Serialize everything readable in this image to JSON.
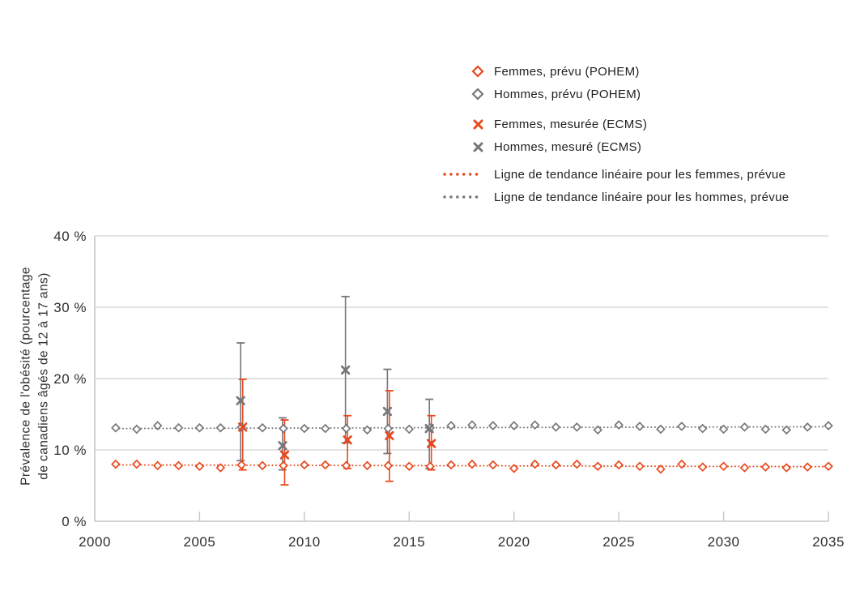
{
  "legend": {
    "items": [
      {
        "label": "Femmes, prévu (POHEM)",
        "marker": "diamond",
        "color_key": "femmes"
      },
      {
        "label": "Hommes, prévu (POHEM)",
        "marker": "diamond",
        "color_key": "hommes"
      },
      {
        "label": "Femmes, mesurée (ECMS)",
        "marker": "x",
        "color_key": "femmes"
      },
      {
        "label": "Hommes, mesuré (ECMS)",
        "marker": "x",
        "color_key": "hommes"
      },
      {
        "label": "Ligne de tendance linéaire pour les femmes, prévue",
        "marker": "dotted-line",
        "color_key": "femmes"
      },
      {
        "label": "Ligne de tendance linéaire pour les hommes, prévue",
        "marker": "dotted-line",
        "color_key": "hommes"
      }
    ]
  },
  "chart_data": {
    "type": "scatter",
    "title": "",
    "xlabel": "",
    "ylabel_line1": "Prévalence de l'obésité (pourcentage",
    "ylabel_line2": "de canadiens âgés de 12 à 17 ans)",
    "xlim": [
      2000,
      2035
    ],
    "ylim": [
      0,
      40
    ],
    "grid": "horizontal",
    "legend_position": "top-right",
    "x_ticks": [
      {
        "value": 2000,
        "label": "2000"
      },
      {
        "value": 2005,
        "label": "2005"
      },
      {
        "value": 2010,
        "label": "2010"
      },
      {
        "value": 2015,
        "label": "2015"
      },
      {
        "value": 2020,
        "label": "2020"
      },
      {
        "value": 2025,
        "label": "2025"
      },
      {
        "value": 2030,
        "label": "2030"
      },
      {
        "value": 2035,
        "label": "2035"
      }
    ],
    "y_ticks": [
      {
        "value": 0,
        "label": "0 %"
      },
      {
        "value": 10,
        "label": "10 %"
      },
      {
        "value": 20,
        "label": "20 %"
      },
      {
        "value": 30,
        "label": "30 %"
      },
      {
        "value": 40,
        "label": "40 %"
      }
    ],
    "colors": {
      "femmes": "#E8491D",
      "hommes": "#76777B",
      "grid": "#D9D9D9",
      "axis": "#C6C6C6",
      "text": "#2E2E2E"
    },
    "series": [
      {
        "name": "Ligne de tendance linéaire pour les femmes, prévue",
        "type": "trend-dotted",
        "color_key": "femmes",
        "start": {
          "x": 2001,
          "y": 7.9
        },
        "end": {
          "x": 2035,
          "y": 7.65
        }
      },
      {
        "name": "Ligne de tendance linéaire pour les hommes, prévue",
        "type": "trend-dotted",
        "color_key": "hommes",
        "start": {
          "x": 2001,
          "y": 13.0
        },
        "end": {
          "x": 2035,
          "y": 13.25
        }
      },
      {
        "name": "Hommes, mesuré (ECMS)",
        "type": "x-errorbar",
        "color_key": "hommes",
        "points": [
          {
            "x": 2007,
            "y": 16.9,
            "lo": 8.5,
            "hi": 25.0
          },
          {
            "x": 2009,
            "y": 10.6,
            "lo": 7.2,
            "hi": 14.5
          },
          {
            "x": 2012,
            "y": 21.2,
            "lo": 11.0,
            "hi": 31.5
          },
          {
            "x": 2014,
            "y": 15.4,
            "lo": 9.5,
            "hi": 21.3
          },
          {
            "x": 2016,
            "y": 13.0,
            "lo": 7.4,
            "hi": 17.1
          }
        ]
      },
      {
        "name": "Femmes, mesurée (ECMS)",
        "type": "x-errorbar",
        "color_key": "femmes",
        "points": [
          {
            "x": 2007,
            "y": 13.2,
            "lo": 7.2,
            "hi": 19.9
          },
          {
            "x": 2009,
            "y": 9.3,
            "lo": 5.1,
            "hi": 14.2
          },
          {
            "x": 2012,
            "y": 11.4,
            "lo": 7.4,
            "hi": 14.8
          },
          {
            "x": 2014,
            "y": 12.0,
            "lo": 5.6,
            "hi": 18.3
          },
          {
            "x": 2016,
            "y": 10.9,
            "lo": 7.2,
            "hi": 14.8
          }
        ]
      },
      {
        "name": "Hommes, prévu (POHEM)",
        "type": "diamond",
        "color_key": "hommes",
        "x_start": 2001,
        "values": [
          13.1,
          12.9,
          13.4,
          13.1,
          13.1,
          13.1,
          13.2,
          13.1,
          13.0,
          13.0,
          13.0,
          13.0,
          12.8,
          13.0,
          12.9,
          13.1,
          13.4,
          13.5,
          13.4,
          13.4,
          13.5,
          13.2,
          13.2,
          12.8,
          13.5,
          13.3,
          12.9,
          13.3,
          13.0,
          12.9,
          13.2,
          12.9,
          12.8,
          13.2,
          13.4
        ]
      },
      {
        "name": "Femmes, prévu (POHEM)",
        "type": "diamond",
        "color_key": "femmes",
        "x_start": 2001,
        "values": [
          8.0,
          8.0,
          7.8,
          7.8,
          7.7,
          7.5,
          7.9,
          7.8,
          7.8,
          7.9,
          7.9,
          7.8,
          7.8,
          7.8,
          7.7,
          7.7,
          7.9,
          8.0,
          7.9,
          7.4,
          8.0,
          7.9,
          8.0,
          7.7,
          7.9,
          7.7,
          7.3,
          8.0,
          7.6,
          7.7,
          7.5,
          7.6,
          7.5,
          7.6,
          7.7
        ]
      }
    ]
  }
}
